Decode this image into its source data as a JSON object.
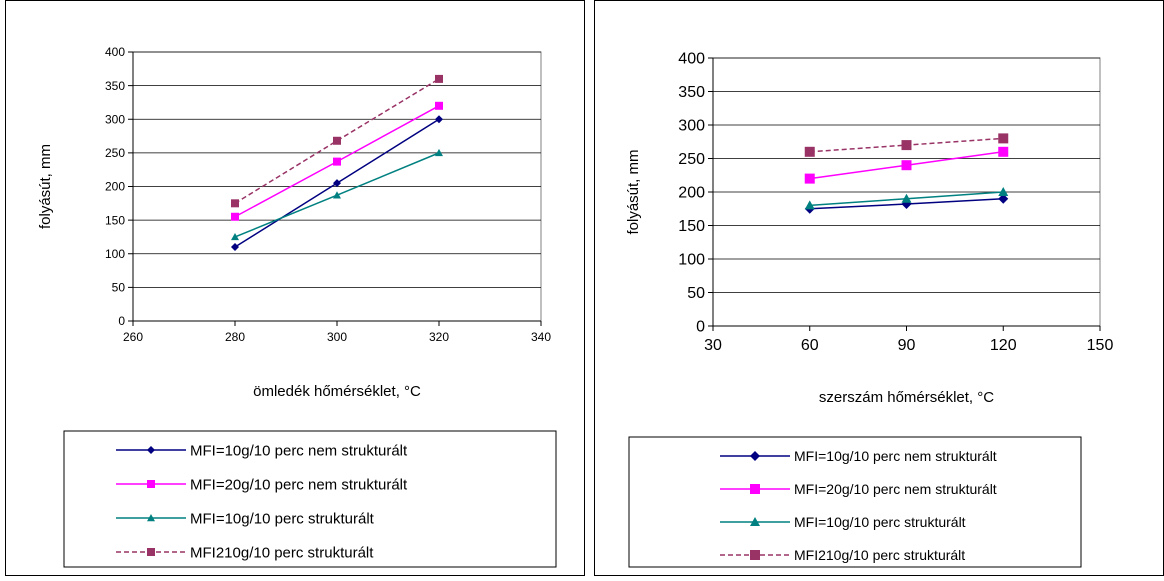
{
  "chart_data": [
    {
      "type": "line",
      "xlabel": "ömledék hőmérséklet, °C",
      "ylabel": "folyásút, mm",
      "xlim": [
        260,
        340
      ],
      "ylim": [
        0,
        400
      ],
      "xticks": [
        260,
        280,
        300,
        320,
        340
      ],
      "yticks": [
        0,
        50,
        100,
        150,
        200,
        250,
        300,
        350,
        400
      ],
      "grid": "horizontal",
      "legend_position": "bottom",
      "x": [
        280,
        300,
        320
      ],
      "series": [
        {
          "name": "MFI=10g/10 perc nem strukturált",
          "values": [
            110,
            205,
            300
          ],
          "color": "#000080",
          "marker": "diamond",
          "dash": "solid"
        },
        {
          "name": "MFI=20g/10 perc nem strukturált",
          "values": [
            155,
            237,
            320
          ],
          "color": "#ff00ff",
          "marker": "square",
          "dash": "solid"
        },
        {
          "name": "MFI=10g/10 perc strukturált",
          "values": [
            125,
            187,
            250
          ],
          "color": "#008080",
          "marker": "triangle",
          "dash": "solid"
        },
        {
          "name": "MFI210g/10 perc strukturált",
          "values": [
            175,
            268,
            360
          ],
          "color": "#993366",
          "marker": "square",
          "dash": "dashed"
        }
      ]
    },
    {
      "type": "line",
      "xlabel": "szerszám hőmérséklet, °C",
      "ylabel": "folyásút, mm",
      "xlim": [
        30,
        150
      ],
      "ylim": [
        0,
        400
      ],
      "xticks": [
        30,
        60,
        90,
        120,
        150
      ],
      "yticks": [
        0,
        50,
        100,
        150,
        200,
        250,
        300,
        350,
        400
      ],
      "grid": "horizontal",
      "legend_position": "bottom",
      "x": [
        60,
        90,
        120
      ],
      "series": [
        {
          "name": "MFI=10g/10 perc nem strukturált",
          "values": [
            175,
            182,
            190
          ],
          "color": "#000080",
          "marker": "diamond",
          "dash": "solid"
        },
        {
          "name": "MFI=20g/10 perc nem strukturált",
          "values": [
            220,
            240,
            260
          ],
          "color": "#ff00ff",
          "marker": "square",
          "dash": "solid"
        },
        {
          "name": "MFI=10g/10 perc strukturált",
          "values": [
            180,
            190,
            200
          ],
          "color": "#008080",
          "marker": "triangle",
          "dash": "solid"
        },
        {
          "name": "MFI210g/10 perc strukturált",
          "values": [
            260,
            270,
            280
          ],
          "color": "#993366",
          "marker": "square",
          "dash": "dashed"
        }
      ]
    }
  ]
}
